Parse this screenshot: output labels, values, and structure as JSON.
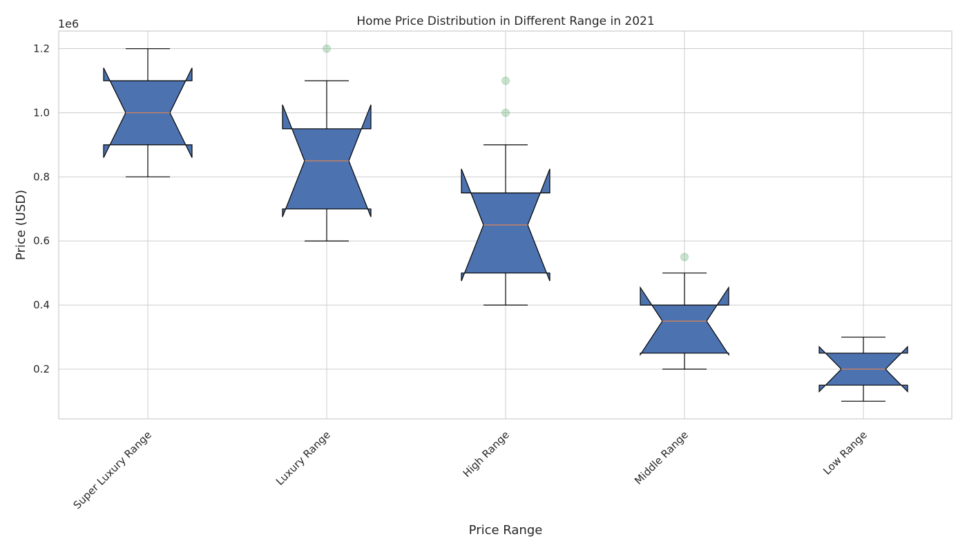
{
  "chart_data": {
    "type": "box",
    "title": "Home Price Distribution in Different Range in 2021",
    "xlabel": "Price Range",
    "ylabel": "Price (USD)",
    "y_scale_label": "1e6",
    "ylim": [
      0.045,
      1.255
    ],
    "yticks": [
      0.2,
      0.4,
      0.6,
      0.8,
      1.0,
      1.2
    ],
    "ytick_labels": [
      "0.2",
      "0.4",
      "0.6",
      "0.8",
      "1.0",
      "1.2"
    ],
    "notched": true,
    "grid": true,
    "categories": [
      "Super Luxury Range",
      "Luxury Range",
      "High Range",
      "Middle Range",
      "Low Range"
    ],
    "boxes": [
      {
        "whisker_low": 0.8,
        "q1": 0.9,
        "median": 1.0,
        "q3": 1.1,
        "whisker_high": 1.2,
        "notch_low": 0.86,
        "notch_high": 1.14,
        "outliers": []
      },
      {
        "whisker_low": 0.6,
        "q1": 0.7,
        "median": 0.85,
        "q3": 0.95,
        "whisker_high": 1.1,
        "notch_low": 0.675,
        "notch_high": 1.025,
        "outliers": [
          1.2
        ]
      },
      {
        "whisker_low": 0.4,
        "q1": 0.5,
        "median": 0.65,
        "q3": 0.75,
        "whisker_high": 0.9,
        "notch_low": 0.475,
        "notch_high": 0.825,
        "outliers": [
          1.0,
          1.1
        ]
      },
      {
        "whisker_low": 0.2,
        "q1": 0.25,
        "median": 0.35,
        "q3": 0.4,
        "whisker_high": 0.5,
        "notch_low": 0.245,
        "notch_high": 0.455,
        "outliers": [
          0.55
        ]
      },
      {
        "whisker_low": 0.1,
        "q1": 0.15,
        "median": 0.2,
        "q3": 0.25,
        "whisker_high": 0.3,
        "notch_low": 0.13,
        "notch_high": 0.27,
        "outliers": []
      }
    ],
    "colors": {
      "box_fill": "#4c72b0",
      "box_edge": "#000000",
      "median_line": "#dd8452",
      "outlier": "#55a868",
      "grid": "#cccccc",
      "axes_edge": "#cccccc"
    }
  }
}
